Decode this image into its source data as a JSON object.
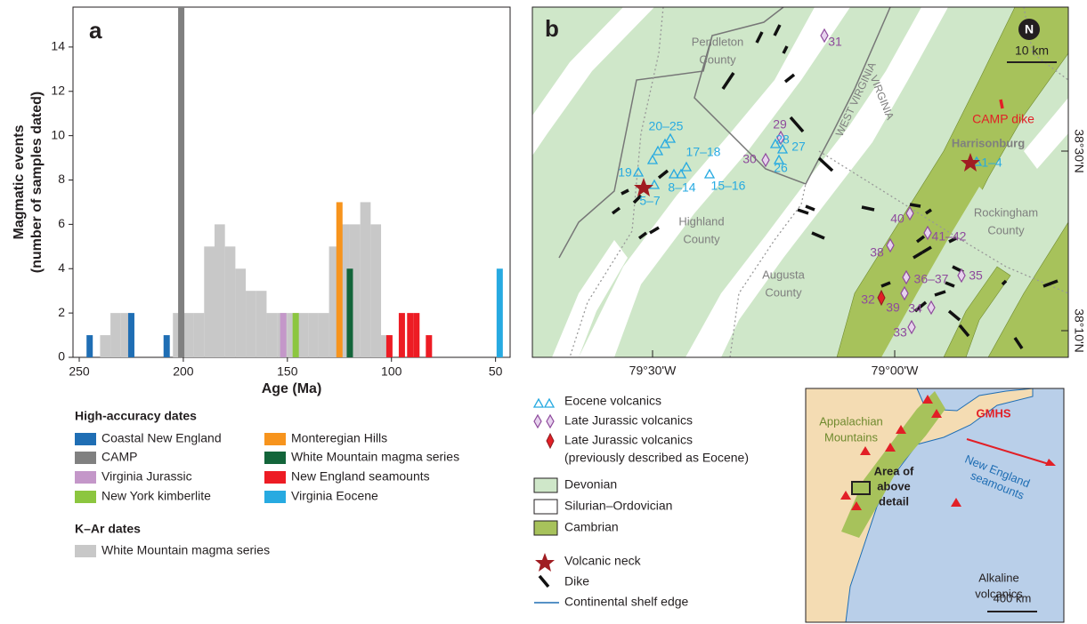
{
  "chart_data": {
    "type": "bar",
    "panel": "a",
    "xlabel": "Age (Ma)",
    "ylabel": [
      "Magmatic events",
      "(number of samples dated)"
    ],
    "xlim": [
      253,
      43
    ],
    "ylim": [
      0,
      15.8
    ],
    "xticks": [
      250,
      200,
      150,
      100,
      50
    ],
    "yticks": [
      0,
      2,
      4,
      6,
      8,
      10,
      12,
      14
    ],
    "legend_titles": [
      "High-accuracy dates",
      "K–Ar dates"
    ],
    "series": [
      {
        "name": "Coastal New England",
        "color": "#1f6eb4",
        "x": [
          245,
          225,
          208
        ],
        "values": [
          1,
          2,
          1
        ]
      },
      {
        "name": "CAMP",
        "color": "#808080",
        "x": [
          201
        ],
        "values": [
          16
        ]
      },
      {
        "name": "Virginia Jurassic",
        "color": "#c497c9",
        "x": [
          152
        ],
        "values": [
          2
        ]
      },
      {
        "name": "New York kimberlite",
        "color": "#8cc63f",
        "x": [
          146
        ],
        "values": [
          2
        ]
      },
      {
        "name": "Monteregian Hills",
        "color": "#f7941d",
        "x": [
          125
        ],
        "values": [
          7
        ]
      },
      {
        "name": "White Mountain magma series",
        "color": "#13653a",
        "x": [
          120
        ],
        "values": [
          4
        ]
      },
      {
        "name": "New England seamounts",
        "color": "#ed1c24",
        "x": [
          101,
          95,
          91,
          88,
          82
        ],
        "values": [
          1,
          2,
          2,
          2,
          1
        ]
      },
      {
        "name": "Virginia Eocene",
        "color": "#27aae1",
        "x": [
          48
        ],
        "values": [
          4
        ]
      },
      {
        "name": "White Mountain magma series",
        "color": "#c8c8c8",
        "bins": [
          240,
          235,
          230,
          225,
          220,
          215,
          210,
          205,
          200,
          195,
          190,
          185,
          180,
          175,
          170,
          165,
          160,
          155,
          150,
          145,
          140,
          135,
          130,
          125,
          120,
          115,
          110,
          105,
          100
        ],
        "values": [
          1,
          2,
          2,
          0,
          0,
          0,
          0,
          2,
          2,
          2,
          5,
          6,
          5,
          4,
          3,
          3,
          2,
          2,
          2,
          2,
          2,
          2,
          5,
          6,
          6,
          7,
          6,
          1
        ]
      }
    ]
  },
  "map": {
    "panel": "b",
    "ticks_x": [
      "79°30'W",
      "79°00'W"
    ],
    "ticks_y": [
      "38°30'N",
      "38°10'N"
    ],
    "north": "N",
    "scale": "10 km",
    "places": [
      "Pendleton",
      "County",
      "Highland",
      "County",
      "Augusta",
      "County",
      "Rockingham",
      "County",
      "Harrisonburg"
    ],
    "states": [
      "WEST VIRGINIA",
      "VIRGINIA"
    ],
    "eocene_labels": [
      "20–25",
      "17–18",
      "19",
      "8–14",
      "15–16",
      "5–7",
      "28",
      "27",
      "26",
      "1–4"
    ],
    "jurassic_labels": [
      "31",
      "29",
      "30",
      "40",
      "41–42",
      "38",
      "36–37",
      "35",
      "32",
      "39",
      "34",
      "33"
    ],
    "camp_label": "CAMP dike",
    "legend": [
      "Eocene volcanics",
      "Late Jurassic volcanics",
      "Late Jurassic volcanics",
      "(previously described as Eocene)",
      "Devonian",
      "Silurian–Ordovician",
      "Cambrian",
      "Volcanic neck",
      "Dike",
      "Continental shelf edge"
    ],
    "inset": [
      "Appalachian",
      "Mountains",
      "GMHS",
      "New England",
      "seamounts",
      "Area of",
      "above",
      "detail",
      "Alkaline",
      "volcanics",
      "400 km"
    ]
  }
}
